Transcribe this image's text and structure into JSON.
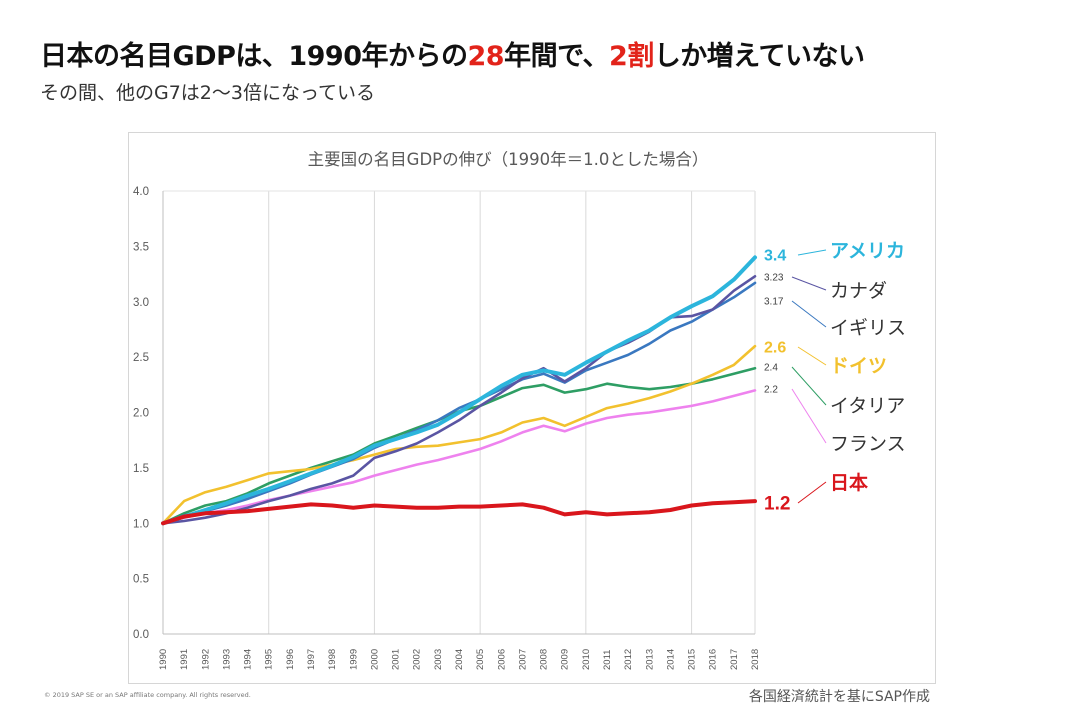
{
  "headline": {
    "part1": "日本の名目GDPは、1990年からの",
    "hl1": "28",
    "part2": "年間で、",
    "hl2": "2割",
    "part3": "しか増えていない"
  },
  "subheadline": "その間、他のG7は2～3倍になっている",
  "footer": {
    "copyright": "© 2019 SAP SE or an SAP affiliate company. All rights reserved.",
    "source": "各国経済統計を基にSAP作成"
  },
  "chart_data": {
    "type": "line",
    "title": "主要国の名目GDPの伸び（1990年＝1.0とした場合）",
    "x": [
      "1990",
      "1991",
      "1992",
      "1993",
      "1994",
      "1995",
      "1996",
      "1997",
      "1998",
      "1999",
      "2000",
      "2001",
      "2002",
      "2003",
      "2004",
      "2005",
      "2006",
      "2007",
      "2008",
      "2009",
      "2010",
      "2011",
      "2012",
      "2013",
      "2014",
      "2015",
      "2016",
      "2017",
      "2018"
    ],
    "ylim": [
      0,
      4.0
    ],
    "yticks": [
      "0.0",
      "0.5",
      "1.0",
      "1.5",
      "2.0",
      "2.5",
      "3.0",
      "3.5",
      "4.0"
    ],
    "grid": "vertical",
    "series": [
      {
        "name": "アメリカ",
        "end_label": "3.4",
        "color": "#2cb5dc",
        "width": 4,
        "values": [
          1.0,
          1.06,
          1.12,
          1.18,
          1.25,
          1.31,
          1.38,
          1.45,
          1.52,
          1.6,
          1.7,
          1.76,
          1.82,
          1.89,
          2.0,
          2.12,
          2.24,
          2.34,
          2.38,
          2.34,
          2.45,
          2.55,
          2.65,
          2.74,
          2.86,
          2.96,
          3.05,
          3.2,
          3.4
        ]
      },
      {
        "name": "カナダ",
        "end_label": "3.23",
        "color": "#5a55a3",
        "width": 2.6,
        "values": [
          1.0,
          1.02,
          1.05,
          1.09,
          1.14,
          1.2,
          1.25,
          1.31,
          1.36,
          1.43,
          1.59,
          1.65,
          1.72,
          1.82,
          1.93,
          2.06,
          2.18,
          2.31,
          2.4,
          2.28,
          2.4,
          2.55,
          2.63,
          2.73,
          2.86,
          2.87,
          2.93,
          3.1,
          3.23
        ]
      },
      {
        "name": "イギリス",
        "end_label": "3.17",
        "color": "#3a78c0",
        "width": 2.6,
        "values": [
          1.0,
          1.07,
          1.11,
          1.16,
          1.22,
          1.29,
          1.36,
          1.44,
          1.51,
          1.58,
          1.68,
          1.76,
          1.84,
          1.93,
          2.04,
          2.12,
          2.21,
          2.3,
          2.35,
          2.27,
          2.38,
          2.45,
          2.52,
          2.62,
          2.74,
          2.82,
          2.93,
          3.04,
          3.17
        ]
      },
      {
        "name": "ドイツ",
        "end_label": "2.6",
        "color": "#f2c12e",
        "width": 2.6,
        "values": [
          1.0,
          1.2,
          1.28,
          1.33,
          1.39,
          1.45,
          1.47,
          1.49,
          1.53,
          1.57,
          1.62,
          1.67,
          1.69,
          1.7,
          1.73,
          1.76,
          1.82,
          1.91,
          1.95,
          1.88,
          1.96,
          2.04,
          2.08,
          2.13,
          2.19,
          2.26,
          2.34,
          2.43,
          2.6
        ]
      },
      {
        "name": "イタリア",
        "end_label": "2.4",
        "color": "#2e9e64",
        "width": 2.6,
        "values": [
          1.0,
          1.09,
          1.16,
          1.2,
          1.27,
          1.36,
          1.43,
          1.5,
          1.56,
          1.62,
          1.72,
          1.79,
          1.86,
          1.93,
          2.01,
          2.06,
          2.14,
          2.22,
          2.25,
          2.18,
          2.21,
          2.26,
          2.23,
          2.21,
          2.23,
          2.26,
          2.3,
          2.35,
          2.4
        ]
      },
      {
        "name": "フランス",
        "end_label": "2.2",
        "color": "#ee82ee",
        "width": 2.6,
        "values": [
          1.0,
          1.05,
          1.09,
          1.12,
          1.16,
          1.21,
          1.25,
          1.29,
          1.33,
          1.37,
          1.43,
          1.48,
          1.53,
          1.57,
          1.62,
          1.67,
          1.74,
          1.82,
          1.88,
          1.83,
          1.9,
          1.95,
          1.98,
          2.0,
          2.03,
          2.06,
          2.1,
          2.15,
          2.2
        ]
      },
      {
        "name": "日本",
        "end_label": "1.2",
        "color": "#d9161c",
        "width": 4,
        "values": [
          1.0,
          1.06,
          1.09,
          1.1,
          1.11,
          1.13,
          1.15,
          1.17,
          1.16,
          1.14,
          1.16,
          1.15,
          1.14,
          1.14,
          1.15,
          1.15,
          1.16,
          1.17,
          1.14,
          1.08,
          1.1,
          1.08,
          1.09,
          1.1,
          1.12,
          1.16,
          1.18,
          1.19,
          1.2
        ]
      }
    ]
  }
}
